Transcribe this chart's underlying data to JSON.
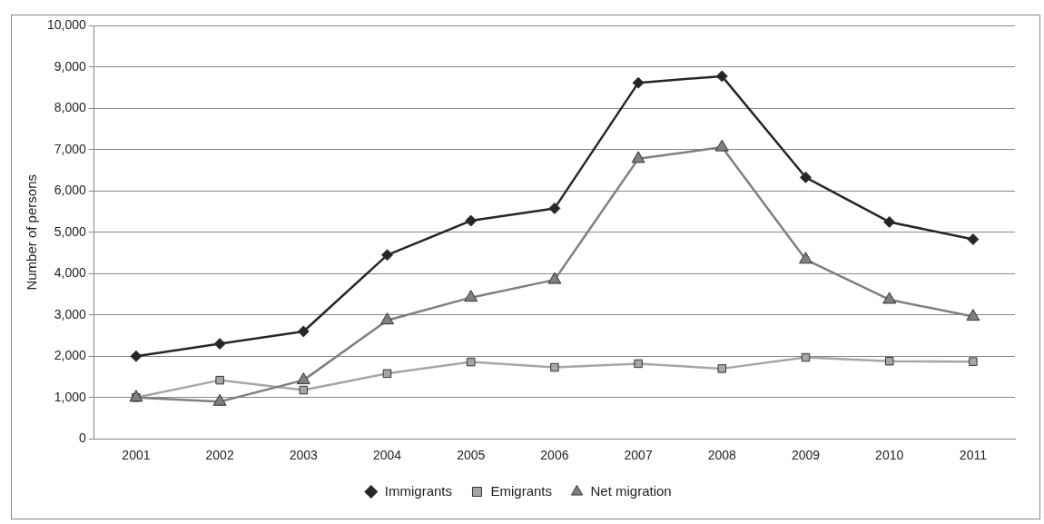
{
  "chart_data": {
    "type": "line",
    "ylabel": "Number of persons",
    "categories": [
      "2001",
      "2002",
      "2003",
      "2004",
      "2005",
      "2006",
      "2007",
      "2008",
      "2009",
      "2010",
      "2011"
    ],
    "series": [
      {
        "name": "Immigrants",
        "color": "#262626",
        "marker": "diamond",
        "values": [
          2000,
          2300,
          2600,
          4450,
          5280,
          5580,
          8620,
          8780,
          6330,
          5250,
          4830
        ]
      },
      {
        "name": "Emigrants",
        "color": "#a6a6a6",
        "marker": "square",
        "values": [
          1000,
          1420,
          1180,
          1580,
          1860,
          1730,
          1820,
          1700,
          1970,
          1880,
          1870
        ]
      },
      {
        "name": "Net migration",
        "color": "#7f7f7f",
        "marker": "triangle",
        "values": [
          1000,
          900,
          1420,
          2870,
          3420,
          3850,
          6780,
          7060,
          4340,
          3370,
          2960
        ]
      }
    ],
    "ylim": [
      0,
      10000
    ],
    "yticks": [
      0,
      {
        "value": 1000,
        "label": "1,000"
      },
      {
        "value": 2000,
        "label": "2,000"
      },
      {
        "value": 3000,
        "label": "3,000"
      },
      {
        "value": 4000,
        "label": "4,000"
      },
      {
        "value": 5000,
        "label": "5,000"
      },
      {
        "value": 6000,
        "label": "6,000"
      },
      {
        "value": 7000,
        "label": "7,000"
      },
      {
        "value": 8000,
        "label": "8,000"
      },
      {
        "value": 9000,
        "label": "9,000"
      },
      {
        "value": 10000,
        "label": "10,000"
      }
    ],
    "grid": "y",
    "legend": "bottom",
    "line_style": "solid"
  }
}
